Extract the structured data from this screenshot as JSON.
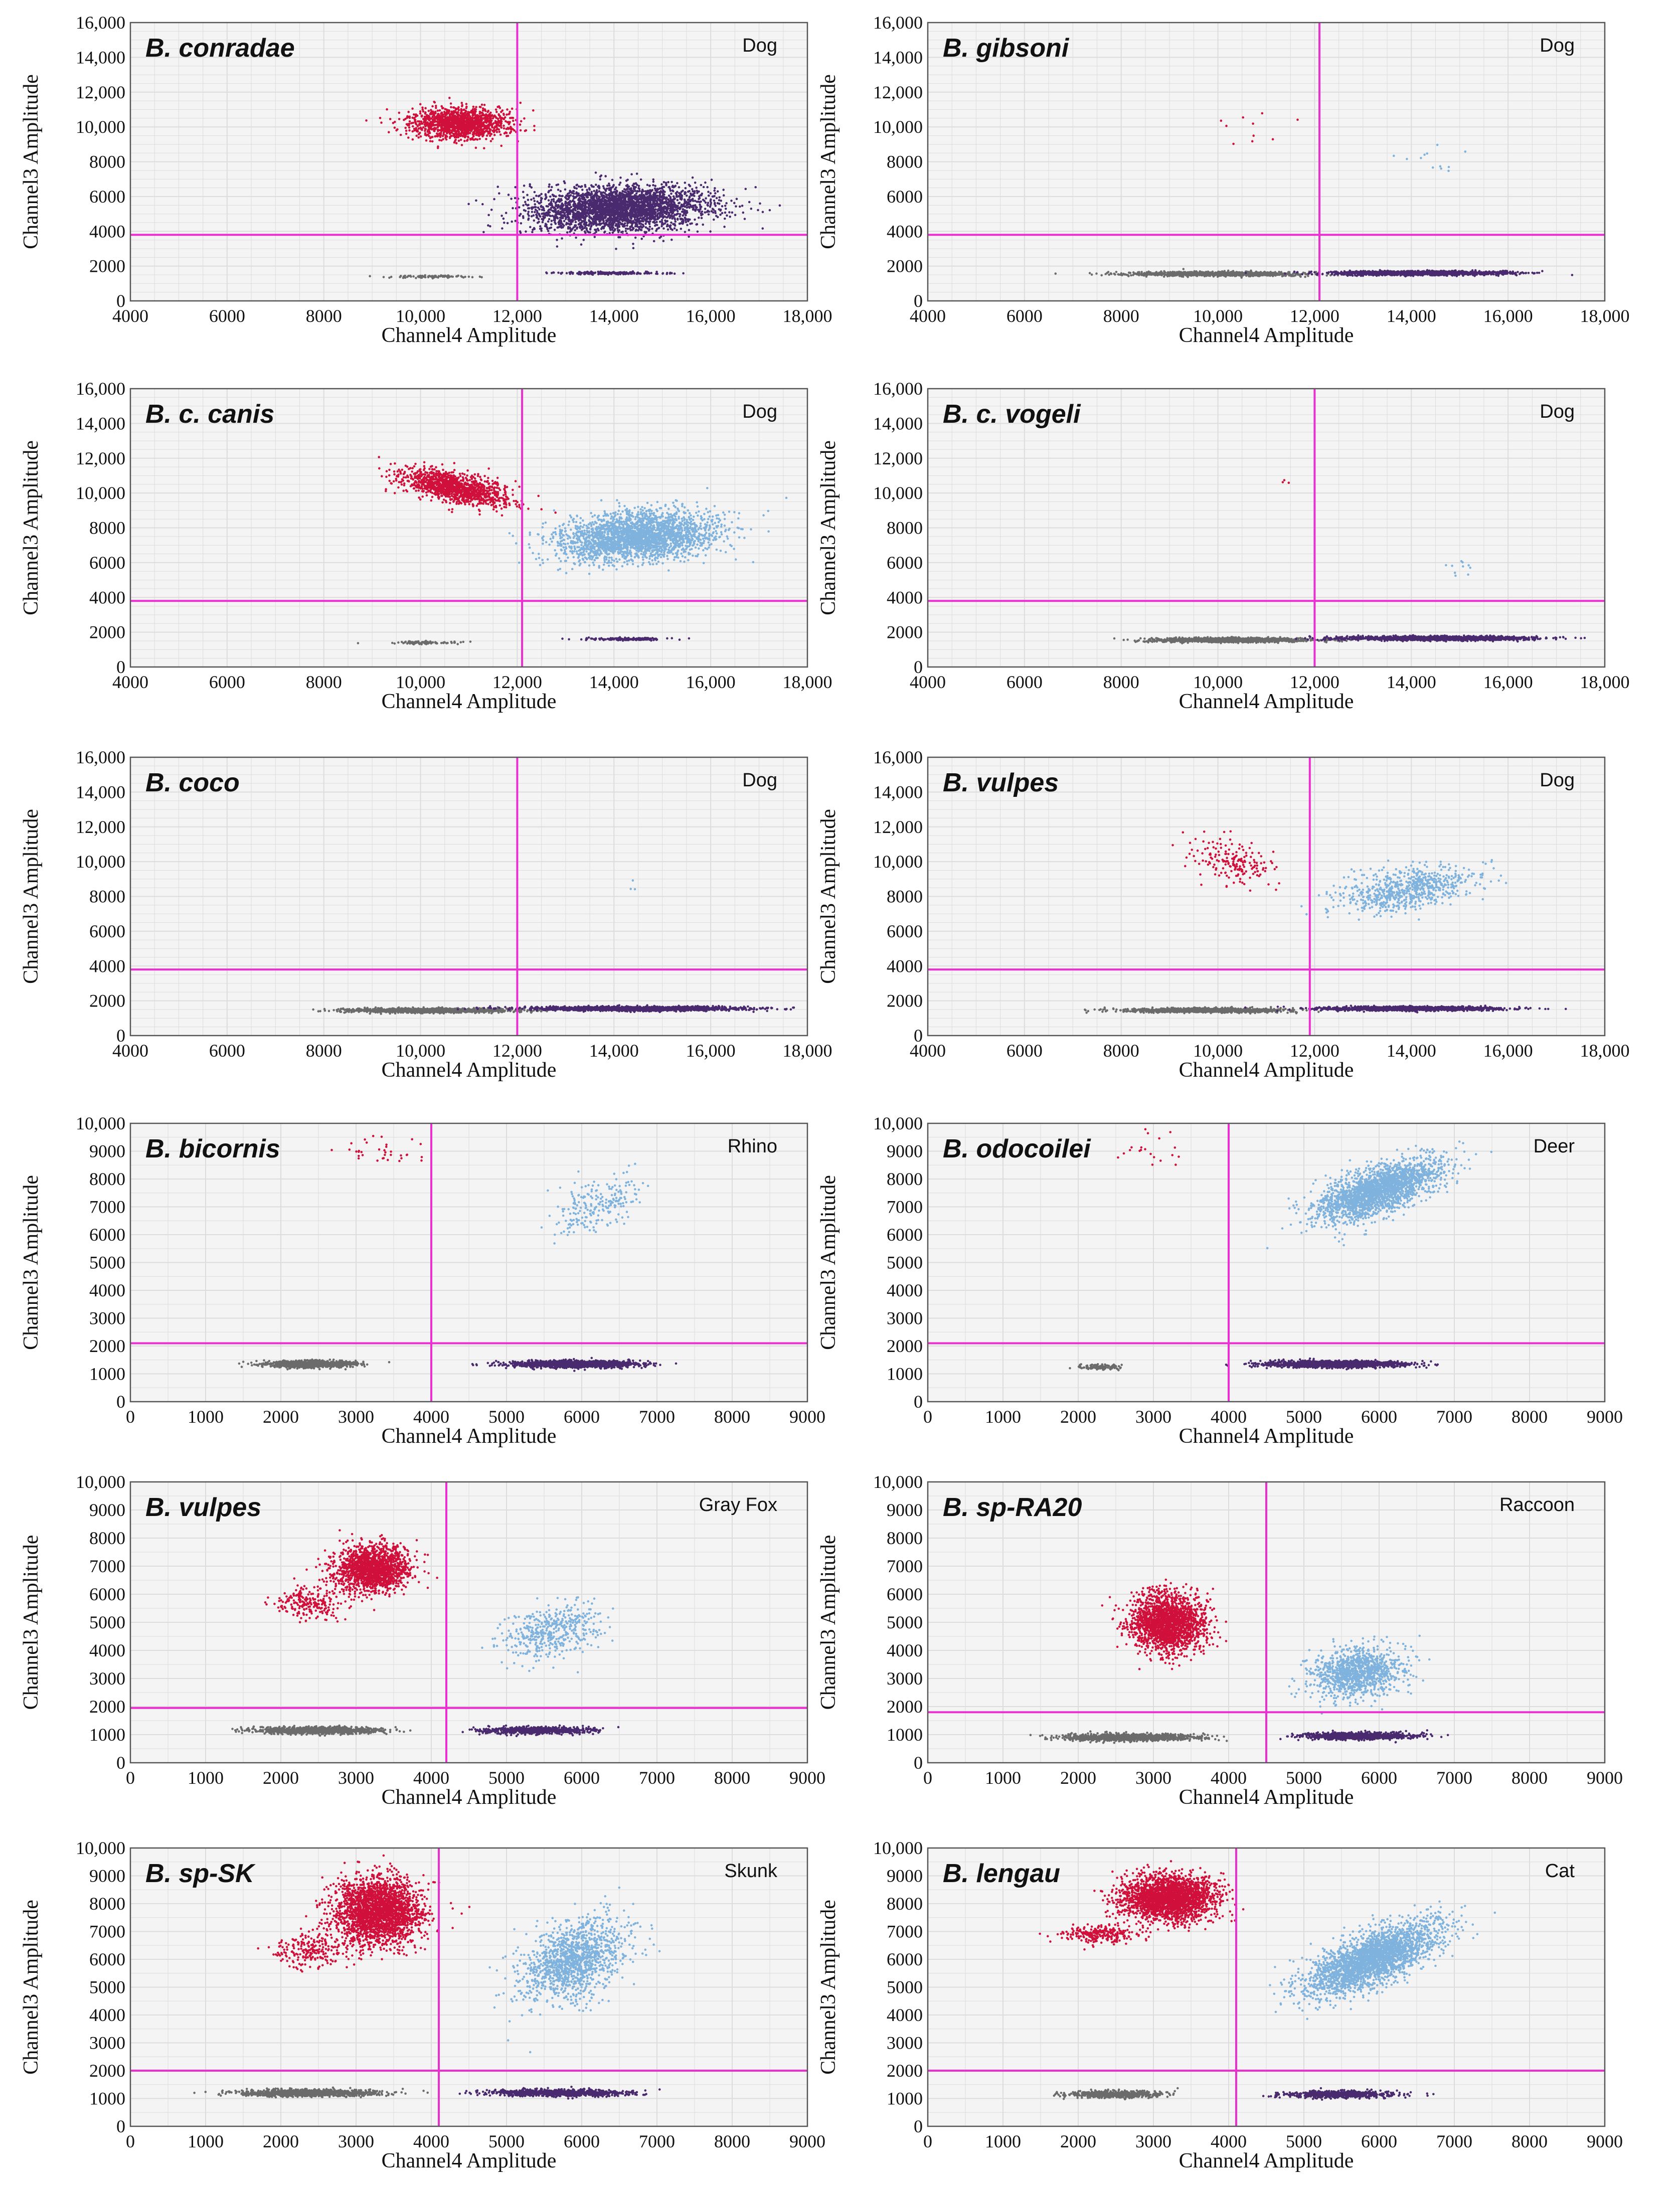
{
  "colors": {
    "red_cluster": "#d0103a",
    "blue_cluster": "#7fb3dd",
    "purple_cluster": "#4a2a6e",
    "gray_cluster": "#6b6b6b",
    "threshold": "#ea2ed0",
    "plot_bg": "#f4f4f4",
    "grid": "#dcdcdc"
  },
  "chart_data": [
    {
      "type": "scatter",
      "title": "B. conradae",
      "host": "Dog",
      "xlabel": "Channel4 Amplitude",
      "ylabel": "Channel3 Amplitude",
      "xlim": [
        4000,
        18000
      ],
      "ylim": [
        0,
        16000
      ],
      "xticks": [
        "4000",
        "6000",
        "8000",
        "10,000",
        "12,000",
        "14,000",
        "16,000",
        "18,000"
      ],
      "yticks": [
        "0",
        "2000",
        "4000",
        "6000",
        "8000",
        "10,000",
        "12,000",
        "14,000",
        "16,000"
      ],
      "threshold_x": 12000,
      "threshold_y": 3800,
      "grid": true,
      "clusters": [
        {
          "name": "Channel3+ only",
          "color": "red",
          "cx": 10800,
          "cy": 10200,
          "sx": 500,
          "sy": 450,
          "n": 1400,
          "corr": 0
        },
        {
          "name": "double positive",
          "color": "purple",
          "cx": 14100,
          "cy": 5300,
          "sx": 900,
          "sy": 650,
          "n": 3000,
          "corr": 0.15
        },
        {
          "name": "negative",
          "color": "gray",
          "cx": 10200,
          "cy": 1400,
          "sx": 400,
          "sy": 40,
          "n": 90,
          "corr": 0
        },
        {
          "name": "Channel4+ only",
          "color": "purple",
          "cx": 13900,
          "cy": 1600,
          "sx": 500,
          "sy": 40,
          "n": 180,
          "corr": 0
        }
      ]
    },
    {
      "type": "scatter",
      "title": "B. gibsoni",
      "host": "Dog",
      "xlabel": "Channel4 Amplitude",
      "ylabel": "Channel3 Amplitude",
      "xlim": [
        4000,
        18000
      ],
      "ylim": [
        0,
        16000
      ],
      "xticks": [
        "4000",
        "6000",
        "8000",
        "10,000",
        "12,000",
        "14,000",
        "16,000",
        "18,000"
      ],
      "yticks": [
        "0",
        "2000",
        "4000",
        "6000",
        "8000",
        "10,000",
        "12,000",
        "14,000",
        "16,000"
      ],
      "threshold_x": 12100,
      "threshold_y": 3800,
      "grid": true,
      "clusters": [
        {
          "name": "Channel3+ only",
          "color": "red",
          "cx": 10600,
          "cy": 10000,
          "sx": 400,
          "sy": 500,
          "n": 10,
          "corr": 0
        },
        {
          "name": "double positive",
          "color": "blue",
          "cx": 14400,
          "cy": 8400,
          "sx": 300,
          "sy": 400,
          "n": 12,
          "corr": 0
        },
        {
          "name": "negative",
          "color": "gray",
          "cx": 10000,
          "cy": 1550,
          "sx": 900,
          "sy": 60,
          "n": 1200,
          "corr": 0
        },
        {
          "name": "Channel4+ only",
          "color": "purple",
          "cx": 14200,
          "cy": 1600,
          "sx": 900,
          "sy": 60,
          "n": 1500,
          "corr": 0
        }
      ]
    },
    {
      "type": "scatter",
      "title": "B. c. canis",
      "host": "Dog",
      "xlabel": "Channel4 Amplitude",
      "ylabel": "Channel3 Amplitude",
      "xlim": [
        4000,
        18000
      ],
      "ylim": [
        0,
        16000
      ],
      "xticks": [
        "4000",
        "6000",
        "8000",
        "10,000",
        "12,000",
        "14,000",
        "16,000",
        "18,000"
      ],
      "yticks": [
        "0",
        "2000",
        "4000",
        "6000",
        "8000",
        "10,000",
        "12,000",
        "14,000",
        "16,000"
      ],
      "threshold_x": 12100,
      "threshold_y": 3800,
      "grid": true,
      "clusters": [
        {
          "name": "Channel3+ only",
          "color": "red",
          "cx": 10700,
          "cy": 10300,
          "sx": 550,
          "sy": 500,
          "n": 1300,
          "corr": -0.6
        },
        {
          "name": "double positive",
          "color": "blue",
          "cx": 14500,
          "cy": 7500,
          "sx": 800,
          "sy": 700,
          "n": 2600,
          "corr": 0.25
        },
        {
          "name": "negative",
          "color": "gray",
          "cx": 10100,
          "cy": 1400,
          "sx": 400,
          "sy": 40,
          "n": 80,
          "corr": 0
        },
        {
          "name": "Channel4+ only",
          "color": "purple",
          "cx": 14200,
          "cy": 1600,
          "sx": 400,
          "sy": 40,
          "n": 150,
          "corr": 0
        }
      ]
    },
    {
      "type": "scatter",
      "title": "B. c. vogeli",
      "host": "Dog",
      "xlabel": "Channel4 Amplitude",
      "ylabel": "Channel3 Amplitude",
      "xlim": [
        4000,
        18000
      ],
      "ylim": [
        0,
        16000
      ],
      "xticks": [
        "4000",
        "6000",
        "8000",
        "10,000",
        "12,000",
        "14,000",
        "16,000",
        "18,000"
      ],
      "yticks": [
        "0",
        "2000",
        "4000",
        "6000",
        "8000",
        "10,000",
        "12,000",
        "14,000",
        "16,000"
      ],
      "threshold_x": 12000,
      "threshold_y": 3800,
      "grid": true,
      "clusters": [
        {
          "name": "Channel3+ only",
          "color": "red",
          "cx": 11400,
          "cy": 10600,
          "sx": 60,
          "sy": 80,
          "n": 3,
          "corr": 0
        },
        {
          "name": "double positive",
          "color": "blue",
          "cx": 15100,
          "cy": 5800,
          "sx": 200,
          "sy": 300,
          "n": 10,
          "corr": 0
        },
        {
          "name": "negative",
          "color": "gray",
          "cx": 10300,
          "cy": 1550,
          "sx": 800,
          "sy": 60,
          "n": 1300,
          "corr": 0
        },
        {
          "name": "Channel4+ only",
          "color": "purple",
          "cx": 14600,
          "cy": 1650,
          "sx": 1000,
          "sy": 60,
          "n": 1600,
          "corr": 0
        }
      ]
    },
    {
      "type": "scatter",
      "title": "B. coco",
      "host": "Dog",
      "xlabel": "Channel4 Amplitude",
      "ylabel": "Channel3 Amplitude",
      "xlim": [
        4000,
        18000
      ],
      "ylim": [
        0,
        16000
      ],
      "xticks": [
        "4000",
        "6000",
        "8000",
        "10,000",
        "12,000",
        "14,000",
        "16,000",
        "18,000"
      ],
      "yticks": [
        "0",
        "2000",
        "4000",
        "6000",
        "8000",
        "10,000",
        "12,000",
        "14,000",
        "16,000"
      ],
      "threshold_x": 12000,
      "threshold_y": 3800,
      "grid": true,
      "clusters": [
        {
          "name": "double positive",
          "color": "blue",
          "cx": 14400,
          "cy": 8500,
          "sx": 150,
          "sy": 250,
          "n": 3,
          "corr": 0
        },
        {
          "name": "negative",
          "color": "gray",
          "cx": 10200,
          "cy": 1450,
          "sx": 900,
          "sy": 60,
          "n": 1300,
          "corr": 0
        },
        {
          "name": "Channel4+ only",
          "color": "purple",
          "cx": 14500,
          "cy": 1550,
          "sx": 1100,
          "sy": 60,
          "n": 1700,
          "corr": 0
        }
      ]
    },
    {
      "type": "scatter",
      "title": "B. vulpes",
      "host": "Dog",
      "xlabel": "Channel4 Amplitude",
      "ylabel": "Channel3 Amplitude",
      "xlim": [
        4000,
        18000
      ],
      "ylim": [
        0,
        16000
      ],
      "xticks": [
        "4000",
        "6000",
        "8000",
        "10,000",
        "12,000",
        "14,000",
        "16,000",
        "18,000"
      ],
      "yticks": [
        "0",
        "2000",
        "4000",
        "6000",
        "8000",
        "10,000",
        "12,000",
        "14,000",
        "16,000"
      ],
      "threshold_x": 11900,
      "threshold_y": 3800,
      "grid": true,
      "clusters": [
        {
          "name": "Channel3+ only",
          "color": "red",
          "cx": 10300,
          "cy": 10000,
          "sx": 400,
          "sy": 650,
          "n": 180,
          "corr": -0.3
        },
        {
          "name": "double positive",
          "color": "blue",
          "cx": 13900,
          "cy": 8400,
          "sx": 700,
          "sy": 650,
          "n": 700,
          "corr": 0.4
        },
        {
          "name": "negative",
          "color": "gray",
          "cx": 9700,
          "cy": 1450,
          "sx": 800,
          "sy": 60,
          "n": 1100,
          "corr": 0
        },
        {
          "name": "Channel4+ only",
          "color": "purple",
          "cx": 14000,
          "cy": 1550,
          "sx": 900,
          "sy": 60,
          "n": 1400,
          "corr": 0
        }
      ]
    },
    {
      "type": "scatter",
      "title": "B. bicornis",
      "host": "Rhino",
      "xlabel": "Channel4 Amplitude",
      "ylabel": "Channel3 Amplitude",
      "xlim": [
        0,
        9000
      ],
      "ylim": [
        0,
        10000
      ],
      "xticks": [
        "0",
        "1000",
        "2000",
        "3000",
        "4000",
        "5000",
        "6000",
        "7000",
        "8000",
        "9000"
      ],
      "yticks": [
        "0",
        "1000",
        "2000",
        "3000",
        "4000",
        "5000",
        "6000",
        "7000",
        "8000",
        "9000",
        "10,000"
      ],
      "threshold_x": 4000,
      "threshold_y": 2100,
      "grid": true,
      "clusters": [
        {
          "name": "Channel3+ only",
          "color": "red",
          "cx": 3300,
          "cy": 9000,
          "sx": 300,
          "sy": 250,
          "n": 35,
          "corr": 0
        },
        {
          "name": "double positive",
          "color": "blue",
          "cx": 6200,
          "cy": 7100,
          "sx": 300,
          "sy": 500,
          "n": 220,
          "corr": 0.6
        },
        {
          "name": "negative",
          "color": "gray",
          "cx": 2400,
          "cy": 1350,
          "sx": 300,
          "sy": 60,
          "n": 900,
          "corr": 0
        },
        {
          "name": "Channel4+ only",
          "color": "purple",
          "cx": 5900,
          "cy": 1350,
          "sx": 400,
          "sy": 60,
          "n": 1400,
          "corr": 0
        }
      ]
    },
    {
      "type": "scatter",
      "title": "B. odocoilei",
      "host": "Deer",
      "xlabel": "Channel4 Amplitude",
      "ylabel": "Channel3 Amplitude",
      "xlim": [
        0,
        9000
      ],
      "ylim": [
        0,
        10000
      ],
      "xticks": [
        "0",
        "1000",
        "2000",
        "3000",
        "4000",
        "5000",
        "6000",
        "7000",
        "8000",
        "9000"
      ],
      "yticks": [
        "0",
        "1000",
        "2000",
        "3000",
        "4000",
        "5000",
        "6000",
        "7000",
        "8000",
        "9000",
        "10,000"
      ],
      "threshold_x": 4000,
      "threshold_y": 2100,
      "grid": true,
      "clusters": [
        {
          "name": "Channel3+ only",
          "color": "red",
          "cx": 3000,
          "cy": 9100,
          "sx": 250,
          "sy": 350,
          "n": 20,
          "corr": 0
        },
        {
          "name": "double positive",
          "color": "blue",
          "cx": 6000,
          "cy": 7600,
          "sx": 400,
          "sy": 550,
          "n": 2200,
          "corr": 0.65
        },
        {
          "name": "negative",
          "color": "gray",
          "cx": 2300,
          "cy": 1250,
          "sx": 150,
          "sy": 50,
          "n": 120,
          "corr": 0
        },
        {
          "name": "Channel4+ only",
          "color": "purple",
          "cx": 5400,
          "cy": 1350,
          "sx": 450,
          "sy": 60,
          "n": 1500,
          "corr": 0
        }
      ]
    },
    {
      "type": "scatter",
      "title": "B. vulpes",
      "host": "Gray Fox",
      "xlabel": "Channel4 Amplitude",
      "ylabel": "Channel3 Amplitude",
      "xlim": [
        0,
        9000
      ],
      "ylim": [
        0,
        10000
      ],
      "xticks": [
        "0",
        "1000",
        "2000",
        "3000",
        "4000",
        "5000",
        "6000",
        "7000",
        "8000",
        "9000"
      ],
      "yticks": [
        "0",
        "1000",
        "2000",
        "3000",
        "4000",
        "5000",
        "6000",
        "7000",
        "8000",
        "9000",
        "10,000"
      ],
      "threshold_x": 4200,
      "threshold_y": 1950,
      "grid": true,
      "clusters": [
        {
          "name": "Channel3+ only",
          "color": "red",
          "cx": 3200,
          "cy": 6900,
          "sx": 250,
          "sy": 400,
          "n": 1600,
          "corr": 0
        },
        {
          "name": "Channel3+ tail",
          "color": "red",
          "cx": 2400,
          "cy": 5700,
          "sx": 250,
          "sy": 300,
          "n": 220,
          "corr": 0
        },
        {
          "name": "double positive",
          "color": "blue",
          "cx": 5600,
          "cy": 4700,
          "sx": 300,
          "sy": 450,
          "n": 450,
          "corr": 0.3
        },
        {
          "name": "negative",
          "color": "gray",
          "cx": 2500,
          "cy": 1150,
          "sx": 400,
          "sy": 60,
          "n": 1100,
          "corr": 0
        },
        {
          "name": "Channel4+ only",
          "color": "purple",
          "cx": 5400,
          "cy": 1150,
          "sx": 350,
          "sy": 60,
          "n": 800,
          "corr": 0
        }
      ]
    },
    {
      "type": "scatter",
      "title": "B. sp-RA20",
      "host": "Raccoon",
      "xlabel": "Channel4 Amplitude",
      "ylabel": "Channel3 Amplitude",
      "xlim": [
        0,
        9000
      ],
      "ylim": [
        0,
        10000
      ],
      "xticks": [
        "0",
        "1000",
        "2000",
        "3000",
        "4000",
        "5000",
        "6000",
        "7000",
        "8000",
        "9000"
      ],
      "yticks": [
        "0",
        "1000",
        "2000",
        "3000",
        "4000",
        "5000",
        "6000",
        "7000",
        "8000",
        "9000",
        "10,000"
      ],
      "threshold_x": 4500,
      "threshold_y": 1800,
      "grid": true,
      "clusters": [
        {
          "name": "Channel3+ only",
          "color": "red",
          "cx": 3200,
          "cy": 5000,
          "sx": 250,
          "sy": 500,
          "n": 1900,
          "corr": 0
        },
        {
          "name": "double positive",
          "color": "blue",
          "cx": 5700,
          "cy": 3200,
          "sx": 300,
          "sy": 450,
          "n": 1100,
          "corr": 0.15
        },
        {
          "name": "negative",
          "color": "gray",
          "cx": 2700,
          "cy": 900,
          "sx": 450,
          "sy": 60,
          "n": 1100,
          "corr": 0
        },
        {
          "name": "Channel4+ only",
          "color": "purple",
          "cx": 5700,
          "cy": 950,
          "sx": 350,
          "sy": 60,
          "n": 900,
          "corr": 0
        }
      ]
    },
    {
      "type": "scatter",
      "title": "B. sp-SK",
      "host": "Skunk",
      "xlabel": "Channel4 Amplitude",
      "ylabel": "Channel3 Amplitude",
      "xlim": [
        0,
        9000
      ],
      "ylim": [
        0,
        10000
      ],
      "xticks": [
        "0",
        "1000",
        "2000",
        "3000",
        "4000",
        "5000",
        "6000",
        "7000",
        "8000",
        "9000"
      ],
      "yticks": [
        "0",
        "1000",
        "2000",
        "3000",
        "4000",
        "5000",
        "6000",
        "7000",
        "8000",
        "9000",
        "10,000"
      ],
      "threshold_x": 4100,
      "threshold_y": 2000,
      "grid": true,
      "clusters": [
        {
          "name": "Channel3+ only",
          "color": "red",
          "cx": 3300,
          "cy": 7700,
          "sx": 300,
          "sy": 600,
          "n": 2400,
          "corr": 0
        },
        {
          "name": "Channel3+ tail",
          "color": "red",
          "cx": 2400,
          "cy": 6300,
          "sx": 250,
          "sy": 300,
          "n": 220,
          "corr": 0
        },
        {
          "name": "double positive",
          "color": "blue",
          "cx": 5900,
          "cy": 6000,
          "sx": 350,
          "sy": 750,
          "n": 1300,
          "corr": 0.45
        },
        {
          "name": "negative",
          "color": "gray",
          "cx": 2400,
          "cy": 1200,
          "sx": 450,
          "sy": 60,
          "n": 1100,
          "corr": 0
        },
        {
          "name": "Channel4+ only",
          "color": "purple",
          "cx": 5700,
          "cy": 1200,
          "sx": 450,
          "sy": 60,
          "n": 900,
          "corr": 0
        }
      ]
    },
    {
      "type": "scatter",
      "title": "B. lengau",
      "host": "Cat",
      "xlabel": "Channel4 Amplitude",
      "ylabel": "Channel3 Amplitude",
      "xlim": [
        0,
        9000
      ],
      "ylim": [
        0,
        10000
      ],
      "xticks": [
        "0",
        "1000",
        "2000",
        "3000",
        "4000",
        "5000",
        "6000",
        "7000",
        "8000",
        "9000"
      ],
      "yticks": [
        "0",
        "1000",
        "2000",
        "3000",
        "4000",
        "5000",
        "6000",
        "7000",
        "8000",
        "9000",
        "10,000"
      ],
      "threshold_x": 4100,
      "threshold_y": 2000,
      "grid": true,
      "clusters": [
        {
          "name": "Channel3+ only",
          "color": "red",
          "cx": 3200,
          "cy": 8200,
          "sx": 300,
          "sy": 400,
          "n": 2400,
          "corr": 0
        },
        {
          "name": "Channel3+ tail",
          "color": "red",
          "cx": 2300,
          "cy": 6900,
          "sx": 250,
          "sy": 150,
          "n": 250,
          "corr": 0
        },
        {
          "name": "double positive",
          "color": "blue",
          "cx": 5900,
          "cy": 6000,
          "sx": 450,
          "sy": 650,
          "n": 2600,
          "corr": 0.7
        },
        {
          "name": "negative",
          "color": "gray",
          "cx": 2500,
          "cy": 1150,
          "sx": 300,
          "sy": 60,
          "n": 600,
          "corr": 0
        },
        {
          "name": "Channel4+ only",
          "color": "purple",
          "cx": 5500,
          "cy": 1150,
          "sx": 350,
          "sy": 60,
          "n": 700,
          "corr": 0
        }
      ]
    }
  ]
}
